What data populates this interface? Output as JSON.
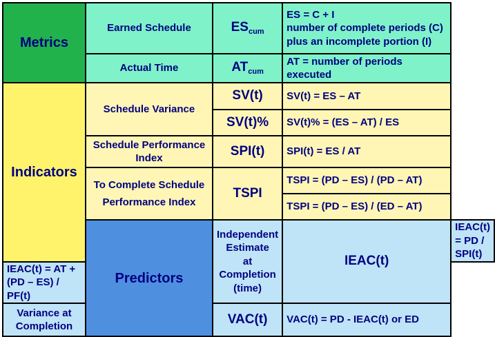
{
  "categories": {
    "metrics": "Metrics",
    "indicators": "Indicators",
    "predictors": "Predictors"
  },
  "rows": {
    "earned_schedule": {
      "measure": "Earned Schedule",
      "abbr": "ES",
      "abbr_sub": "cum",
      "formula_lines": [
        "ES = C + I",
        "number of complete periods (C)",
        "plus an incomplete portion (I)"
      ]
    },
    "actual_time": {
      "measure": "Actual Time",
      "abbr": "AT",
      "abbr_sub": "cum",
      "formula": "AT = number of periods executed"
    },
    "schedule_variance": {
      "measure": "Schedule Variance",
      "items": [
        {
          "abbr": "SV(t)",
          "formula": "SV(t) = ES – AT"
        },
        {
          "abbr": "SV(t)%",
          "formula": "SV(t)% = (ES – AT) / ES"
        }
      ]
    },
    "spi": {
      "measure_lines": [
        "Schedule Performance",
        "Index"
      ],
      "abbr": "SPI(t)",
      "formula": "SPI(t) = ES / AT"
    },
    "tspi": {
      "measure_lines": [
        "To Complete Schedule",
        "Performance Index"
      ],
      "abbr": "TSPI",
      "formulas": [
        "TSPI = (PD – ES) / (PD – AT)",
        "TSPI = (PD – ES) / (ED – AT)"
      ]
    },
    "ieac": {
      "measure_lines": [
        "Independent Estimate",
        "at Completion (time)"
      ],
      "abbr": "IEAC(t)",
      "formulas": [
        "IEAC(t) = PD / SPI(t)",
        "IEAC(t) = AT + (PD – ES) / PF(t)"
      ]
    },
    "vac": {
      "measure_lines": [
        "Variance at",
        "Completion"
      ],
      "abbr": "VAC(t)",
      "formula": "VAC(t) = PD - IEAC(t) or ED"
    }
  },
  "colors": {
    "metrics_category": "#22b24c",
    "metrics_cells": "#7ff2c9",
    "indicators_category": "#fff36b",
    "indicators_cells": "#fff6b5",
    "predictors_category": "#4f8fe0",
    "predictors_cells": "#bfe3f7",
    "text": "#000080"
  }
}
